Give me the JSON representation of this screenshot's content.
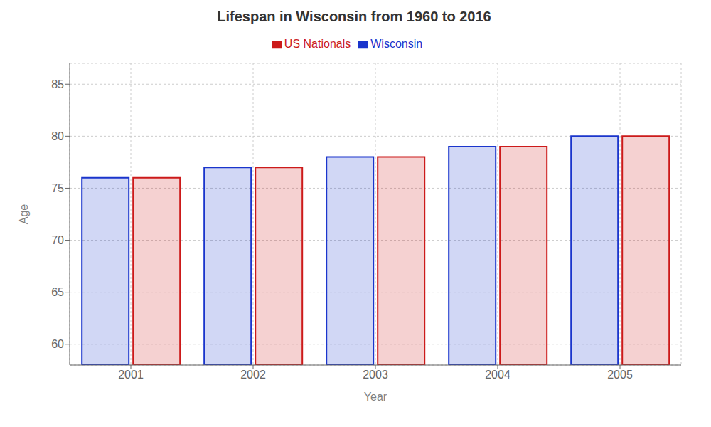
{
  "chart_data": {
    "type": "bar",
    "title": "Lifespan in Wisconsin from 1960 to 2016",
    "xlabel": "Year",
    "ylabel": "Age",
    "categories": [
      "2001",
      "2002",
      "2003",
      "2004",
      "2005"
    ],
    "series": [
      {
        "name": "Wisconsin",
        "color": "#1a35cc",
        "values": [
          76,
          77,
          78,
          79,
          80
        ]
      },
      {
        "name": "US Nationals",
        "color": "#cc1a1a",
        "values": [
          76,
          77,
          78,
          79,
          80
        ]
      }
    ],
    "ylim": [
      58,
      87
    ],
    "yticks": [
      60,
      65,
      70,
      75,
      80,
      85
    ],
    "grid": true,
    "legend": "top"
  }
}
